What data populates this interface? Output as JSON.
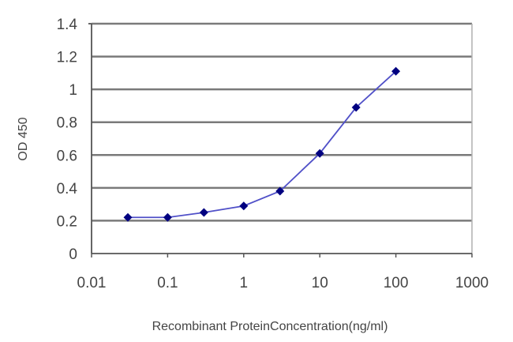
{
  "chart_data": {
    "type": "line",
    "title": "",
    "xlabel": "Recombinant ProteinConcentration(ng/ml)",
    "ylabel": "OD 450",
    "xscale": "log",
    "xlim": [
      0.01,
      1000
    ],
    "ylim": [
      0,
      1.4
    ],
    "x_ticks": [
      "0.01",
      "0.1",
      "1",
      "10",
      "100",
      "1000"
    ],
    "y_ticks": [
      "0",
      "0.2",
      "0.4",
      "0.6",
      "0.8",
      "1",
      "1.2",
      "1.4"
    ],
    "grid": "horizontal",
    "legend": "none",
    "series": [
      {
        "name": "OD 450",
        "color": "#000080",
        "line_color": "#5050c8",
        "marker": "diamond",
        "x": [
          0.03,
          0.1,
          0.3,
          1,
          3,
          10,
          30,
          100
        ],
        "values": [
          0.22,
          0.22,
          0.25,
          0.29,
          0.38,
          0.61,
          0.89,
          1.11
        ]
      }
    ]
  }
}
